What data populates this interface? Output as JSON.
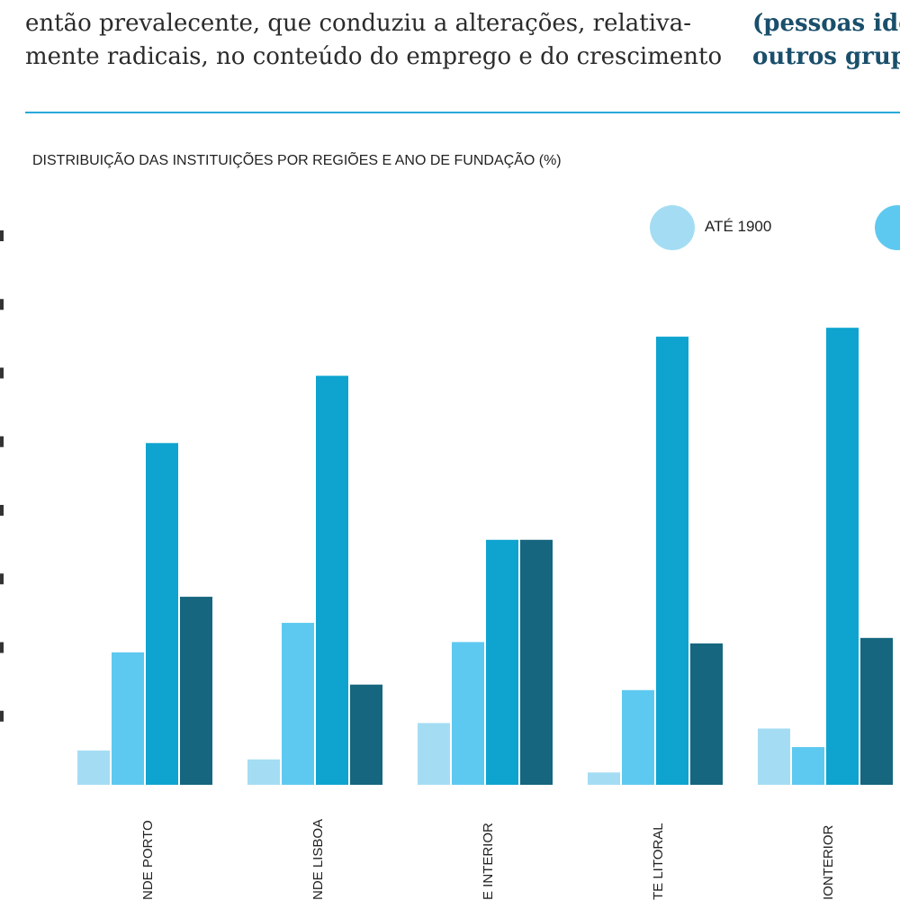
{
  "article": {
    "body_lines": [
      "então prevalecente, que conduziu a alterações, relativa-",
      "mente radicais, no conteúdo do emprego e do crescimento"
    ],
    "side_lines": [
      "(pessoas ido",
      "outros grup"
    ]
  },
  "chart_data": {
    "type": "bar",
    "title": "DISTRIBUIÇÃO DAS INSTITUIÇÕES POR REGIÕES E ANO DE FUNDAÇÃO (%)",
    "categories": [
      "NDE PORTO",
      "NDE LISBOA",
      "E INTERIOR",
      "TE LITORAL",
      "IONTERIOR"
    ],
    "series": [
      {
        "name": "ATÉ 1900",
        "color": "#a4ddf3",
        "values": [
          5,
          3.7,
          9,
          1.8,
          8.2
        ]
      },
      {
        "name": "",
        "color": "#5ec9f0",
        "values": [
          19.3,
          23.6,
          20.8,
          13.8,
          5.5
        ]
      },
      {
        "name": "",
        "color": "#0ea4cf",
        "values": [
          49.8,
          59.6,
          35.7,
          65.3,
          66.6
        ]
      },
      {
        "name": "",
        "color": "#15667e",
        "values": [
          27.4,
          14.6,
          35.7,
          20.6,
          21.4
        ]
      }
    ],
    "ylim": [
      0,
      80
    ],
    "yticks": [
      10,
      20,
      30,
      40,
      50,
      60,
      70,
      80
    ],
    "legend_position": "top-right",
    "grid": false
  }
}
